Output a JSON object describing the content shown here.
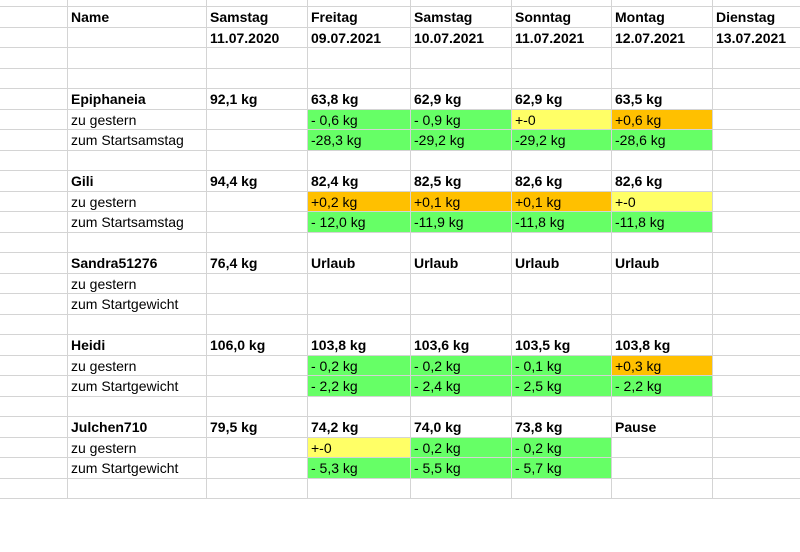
{
  "header": {
    "name_label": "Name",
    "days": [
      "Samstag",
      "Freitag",
      "Samstag",
      "Sonntag",
      "Montag",
      "Dienstag"
    ],
    "dates": [
      "11.07.2020",
      "09.07.2021",
      "10.07.2021",
      "11.07.2021",
      "12.07.2021",
      "13.07.2021"
    ]
  },
  "colors": {
    "green": "#66ff66",
    "yellow": "#ffff66",
    "orange": "#ffc000"
  },
  "people": [
    {
      "name": "Epiphaneia",
      "start": "92,1 kg",
      "weights": [
        "63,8 kg",
        "62,9 kg",
        "62,9 kg",
        "63,5 kg",
        ""
      ],
      "delta_label": "zu gestern",
      "deltas": [
        "- 0,6 kg",
        "- 0,9 kg",
        "+-0",
        "+0,6 kg",
        ""
      ],
      "delta_colors": [
        "green",
        "green",
        "yellow",
        "orange",
        ""
      ],
      "total_label": "zum Startsamstag",
      "totals": [
        "-28,3 kg",
        "-29,2 kg",
        "-29,2 kg",
        "-28,6 kg",
        ""
      ],
      "total_colors": [
        "green",
        "green",
        "green",
        "green",
        ""
      ]
    },
    {
      "name": "Gili",
      "start": "94,4 kg",
      "weights": [
        "82,4 kg",
        "82,5 kg",
        "82,6 kg",
        "82,6 kg",
        ""
      ],
      "delta_label": "zu gestern",
      "deltas": [
        "+0,2 kg",
        "+0,1 kg",
        "+0,1 kg",
        "+-0",
        ""
      ],
      "delta_colors": [
        "orange",
        "orange",
        "orange",
        "yellow",
        ""
      ],
      "total_label": "zum Startsamstag",
      "totals": [
        "- 12,0 kg",
        "-11,9 kg",
        "-11,8 kg",
        "-11,8 kg",
        ""
      ],
      "total_colors": [
        "green",
        "green",
        "green",
        "green",
        ""
      ]
    },
    {
      "name": "Sandra51276",
      "start": "76,4 kg",
      "weights": [
        "Urlaub",
        "Urlaub",
        "Urlaub",
        "Urlaub",
        ""
      ],
      "delta_label": "zu gestern",
      "deltas": [
        "",
        "",
        "",
        "",
        ""
      ],
      "delta_colors": [
        "",
        "",
        "",
        "",
        ""
      ],
      "total_label": "zum Startgewicht",
      "totals": [
        "",
        "",
        "",
        "",
        ""
      ],
      "total_colors": [
        "",
        "",
        "",
        "",
        ""
      ]
    },
    {
      "name": "Heidi",
      "start": "106,0 kg",
      "weights": [
        "103,8 kg",
        "103,6 kg",
        "103,5 kg",
        "103,8 kg",
        ""
      ],
      "delta_label": "zu gestern",
      "deltas": [
        "- 0,2 kg",
        "- 0,2 kg",
        "- 0,1 kg",
        "+0,3 kg",
        ""
      ],
      "delta_colors": [
        "green",
        "green",
        "green",
        "orange",
        ""
      ],
      "total_label": "zum Startgewicht",
      "totals": [
        "- 2,2 kg",
        "- 2,4 kg",
        "- 2,5 kg",
        "-  2,2 kg",
        ""
      ],
      "total_colors": [
        "green",
        "green",
        "green",
        "green",
        ""
      ]
    },
    {
      "name": "Julchen710",
      "start": "79,5 kg",
      "weights": [
        "74,2 kg",
        "74,0 kg",
        "73,8 kg",
        "Pause",
        ""
      ],
      "delta_label": "zu gestern",
      "deltas": [
        "+-0",
        "- 0,2 kg",
        "- 0,2 kg",
        "",
        ""
      ],
      "delta_colors": [
        "yellow",
        "green",
        "green",
        "",
        ""
      ],
      "total_label": "zum Startgewicht",
      "totals": [
        "- 5,3 kg",
        "- 5,5 kg",
        "- 5,7 kg",
        "",
        ""
      ],
      "total_colors": [
        "green",
        "green",
        "green",
        "",
        ""
      ]
    }
  ]
}
